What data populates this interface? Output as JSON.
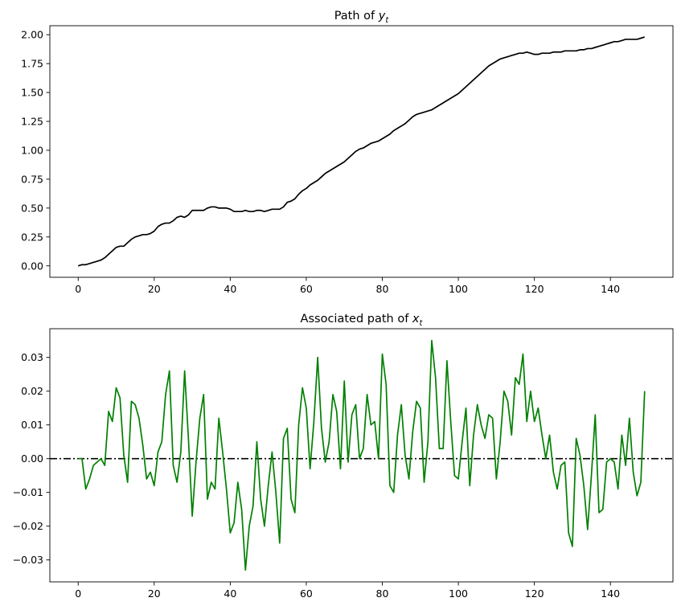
{
  "chart_data": [
    {
      "type": "line",
      "title": "Path of ",
      "title_var": "y",
      "title_sub": "t",
      "xlabel": "",
      "ylabel": "",
      "xlim": [
        -7.45,
        156.45
      ],
      "ylim": [
        -0.0989,
        2.0778
      ],
      "xticks": [
        0,
        20,
        40,
        60,
        80,
        100,
        120,
        140
      ],
      "yticks": [
        0.0,
        0.25,
        0.5,
        0.75,
        1.0,
        1.25,
        1.5,
        1.75,
        2.0
      ],
      "ytick_labels": [
        "0.00",
        "0.25",
        "0.50",
        "0.75",
        "1.00",
        "1.25",
        "1.50",
        "1.75",
        "2.00"
      ],
      "grid": false,
      "series": [
        {
          "color": "#000000",
          "x": [
            0,
            1,
            2,
            3,
            4,
            5,
            6,
            7,
            8,
            9,
            10,
            11,
            12,
            13,
            14,
            15,
            16,
            17,
            18,
            19,
            20,
            21,
            22,
            23,
            24,
            25,
            26,
            27,
            28,
            29,
            30,
            31,
            32,
            33,
            34,
            35,
            36,
            37,
            38,
            39,
            40,
            41,
            42,
            43,
            44,
            45,
            46,
            47,
            48,
            49,
            50,
            51,
            52,
            53,
            54,
            55,
            56,
            57,
            58,
            59,
            60,
            61,
            62,
            63,
            64,
            65,
            66,
            67,
            68,
            69,
            70,
            71,
            72,
            73,
            74,
            75,
            76,
            77,
            78,
            79,
            80,
            81,
            82,
            83,
            84,
            85,
            86,
            87,
            88,
            89,
            90,
            91,
            92,
            93,
            94,
            95,
            96,
            97,
            98,
            99,
            100,
            101,
            102,
            103,
            104,
            105,
            106,
            107,
            108,
            109,
            110,
            111,
            112,
            113,
            114,
            115,
            116,
            117,
            118,
            119,
            120,
            121,
            122,
            123,
            124,
            125,
            126,
            127,
            128,
            129,
            130,
            131,
            132,
            133,
            134,
            135,
            136,
            137,
            138,
            139,
            140,
            141,
            142,
            143,
            144,
            145,
            146,
            147,
            148,
            149
          ],
          "values": [
            0.0,
            0.01,
            0.01,
            0.02,
            0.03,
            0.04,
            0.05,
            0.07,
            0.1,
            0.13,
            0.16,
            0.17,
            0.17,
            0.2,
            0.23,
            0.25,
            0.26,
            0.27,
            0.27,
            0.28,
            0.3,
            0.34,
            0.36,
            0.37,
            0.37,
            0.39,
            0.42,
            0.43,
            0.42,
            0.44,
            0.48,
            0.48,
            0.48,
            0.48,
            0.5,
            0.51,
            0.51,
            0.5,
            0.5,
            0.5,
            0.49,
            0.47,
            0.47,
            0.47,
            0.48,
            0.47,
            0.47,
            0.48,
            0.48,
            0.47,
            0.48,
            0.49,
            0.49,
            0.49,
            0.51,
            0.55,
            0.56,
            0.58,
            0.62,
            0.65,
            0.67,
            0.7,
            0.72,
            0.74,
            0.77,
            0.8,
            0.82,
            0.84,
            0.86,
            0.88,
            0.9,
            0.93,
            0.96,
            0.99,
            1.01,
            1.02,
            1.04,
            1.06,
            1.07,
            1.08,
            1.1,
            1.12,
            1.14,
            1.17,
            1.19,
            1.21,
            1.23,
            1.26,
            1.29,
            1.31,
            1.32,
            1.33,
            1.34,
            1.35,
            1.37,
            1.39,
            1.41,
            1.43,
            1.45,
            1.47,
            1.49,
            1.52,
            1.55,
            1.58,
            1.61,
            1.64,
            1.67,
            1.7,
            1.73,
            1.75,
            1.77,
            1.79,
            1.8,
            1.81,
            1.82,
            1.83,
            1.84,
            1.84,
            1.85,
            1.84,
            1.83,
            1.83,
            1.84,
            1.84,
            1.84,
            1.85,
            1.85,
            1.85,
            1.86,
            1.86,
            1.86,
            1.86,
            1.87,
            1.87,
            1.88,
            1.88,
            1.89,
            1.9,
            1.91,
            1.92,
            1.93,
            1.94,
            1.94,
            1.95,
            1.96,
            1.96,
            1.96,
            1.96,
            1.97,
            1.98
          ]
        }
      ]
    },
    {
      "type": "line",
      "title": "Associated path of ",
      "title_var": "x",
      "title_sub": "t",
      "xlabel": "",
      "ylabel": "",
      "xlim": [
        -7.45,
        156.45
      ],
      "ylim": [
        -0.0365,
        0.0385
      ],
      "xticks": [
        0,
        20,
        40,
        60,
        80,
        100,
        120,
        140
      ],
      "yticks": [
        -0.03,
        -0.02,
        -0.01,
        0.0,
        0.01,
        0.02,
        0.03
      ],
      "ytick_labels": [
        "−0.03",
        "−0.02",
        "−0.01",
        "0.00",
        "0.01",
        "0.02",
        "0.03"
      ],
      "grid": false,
      "hline": {
        "y": 0.0,
        "color": "#000000",
        "style": "dash-dot"
      },
      "series": [
        {
          "color": "#008000",
          "x": [
            0,
            1,
            2,
            3,
            4,
            5,
            6,
            7,
            8,
            9,
            10,
            11,
            12,
            13,
            14,
            15,
            16,
            17,
            18,
            19,
            20,
            21,
            22,
            23,
            24,
            25,
            26,
            27,
            28,
            29,
            30,
            31,
            32,
            33,
            34,
            35,
            36,
            37,
            38,
            39,
            40,
            41,
            42,
            43,
            44,
            45,
            46,
            47,
            48,
            49,
            50,
            51,
            52,
            53,
            54,
            55,
            56,
            57,
            58,
            59,
            60,
            61,
            62,
            63,
            64,
            65,
            66,
            67,
            68,
            69,
            70,
            71,
            72,
            73,
            74,
            75,
            76,
            77,
            78,
            79,
            80,
            81,
            82,
            83,
            84,
            85,
            86,
            87,
            88,
            89,
            90,
            91,
            92,
            93,
            94,
            95,
            96,
            97,
            98,
            99,
            100,
            101,
            102,
            103,
            104,
            105,
            106,
            107,
            108,
            109,
            110,
            111,
            112,
            113,
            114,
            115,
            116,
            117,
            118,
            119,
            120,
            121,
            122,
            123,
            124,
            125,
            126,
            127,
            128,
            129,
            130,
            131,
            132,
            133,
            134,
            135,
            136,
            137,
            138,
            139,
            140,
            141,
            142,
            143,
            144,
            145,
            146,
            147,
            148,
            149
          ],
          "values": [
            0.0,
            0.0,
            -0.009,
            -0.006,
            -0.002,
            -0.001,
            0.0,
            -0.002,
            0.014,
            0.011,
            0.021,
            0.018,
            0.001,
            -0.007,
            0.017,
            0.016,
            0.012,
            0.004,
            -0.006,
            -0.004,
            -0.008,
            0.002,
            0.005,
            0.019,
            0.026,
            -0.002,
            -0.007,
            0.002,
            0.026,
            0.006,
            -0.017,
            -0.001,
            0.012,
            0.019,
            -0.012,
            -0.007,
            -0.009,
            0.012,
            0.002,
            -0.009,
            -0.022,
            -0.019,
            -0.007,
            -0.015,
            -0.033,
            -0.02,
            -0.014,
            0.005,
            -0.012,
            -0.02,
            -0.008,
            0.002,
            -0.01,
            -0.025,
            0.006,
            0.009,
            -0.012,
            -0.016,
            0.01,
            0.021,
            0.015,
            -0.003,
            0.011,
            0.03,
            0.009,
            -0.001,
            0.005,
            0.019,
            0.014,
            -0.003,
            0.023,
            -0.001,
            0.013,
            0.016,
            0.0,
            0.003,
            0.019,
            0.01,
            0.011,
            0.0,
            0.031,
            0.022,
            -0.008,
            -0.01,
            0.007,
            0.016,
            0.001,
            -0.006,
            0.008,
            0.017,
            0.015,
            -0.007,
            0.005,
            0.035,
            0.024,
            0.003,
            0.003,
            0.029,
            0.011,
            -0.005,
            -0.006,
            0.005,
            0.015,
            -0.008,
            0.007,
            0.016,
            0.01,
            0.006,
            0.013,
            0.012,
            -0.006,
            0.005,
            0.02,
            0.017,
            0.007,
            0.024,
            0.022,
            0.031,
            0.011,
            0.02,
            0.011,
            0.015,
            0.007,
            0.0,
            0.007,
            -0.004,
            -0.009,
            -0.002,
            -0.001,
            -0.022,
            -0.026,
            0.006,
            0.001,
            -0.008,
            -0.021,
            -0.005,
            0.013,
            -0.016,
            -0.015,
            -0.001,
            0.0,
            -0.001,
            -0.009,
            0.007,
            -0.002,
            0.012,
            -0.004,
            -0.011,
            -0.007,
            0.02
          ]
        }
      ]
    }
  ]
}
